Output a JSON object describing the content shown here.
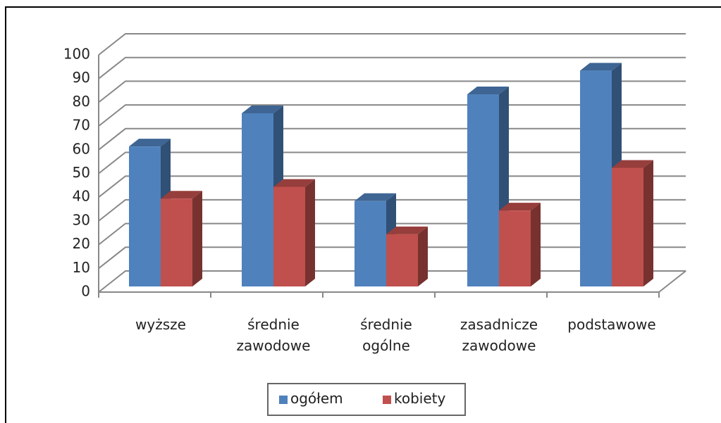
{
  "chart_data": {
    "type": "bar3d",
    "categories": [
      "wyższe",
      "średnie zawodowe",
      "średnie ogólne",
      "zasadnicze zawodowe",
      "podstawowe"
    ],
    "series": [
      {
        "name": "ogółem",
        "color": "#4f81bd",
        "values": [
          59,
          73,
          36,
          81,
          91
        ]
      },
      {
        "name": "kobiety",
        "color": "#c0504d",
        "values": [
          37,
          42,
          22,
          32,
          50
        ]
      }
    ],
    "ylim": [
      0,
      100
    ],
    "yticks": [
      0,
      10,
      20,
      30,
      40,
      50,
      60,
      70,
      80,
      90,
      100
    ],
    "grid": true,
    "legend": "bottom"
  }
}
